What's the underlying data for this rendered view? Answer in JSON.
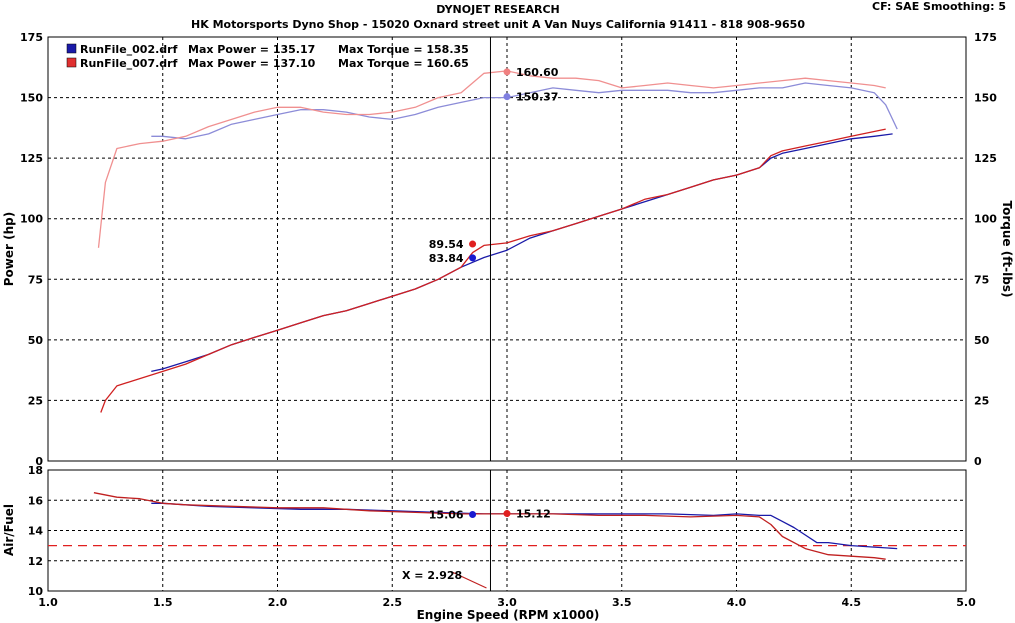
{
  "header": {
    "line1": "DYNOJET RESEARCH",
    "line2": "HK Motorsports Dyno Shop - 15020 Oxnard street unit A Van Nuys California 91411 - 818 908-9650",
    "settings": "CF: SAE  Smoothing: 5"
  },
  "chart_data": [
    {
      "type": "line",
      "panel": "power-torque",
      "ylabel_left": "Power (hp)",
      "ylabel_right": "Torque (ft-lbs)",
      "xlim": [
        1.0,
        5.0
      ],
      "ylim": [
        0,
        175
      ],
      "x_ticks": [
        1.0,
        1.5,
        2.0,
        2.5,
        3.0,
        3.5,
        4.0,
        4.5,
        5.0
      ],
      "y_ticks": [
        0,
        25,
        50,
        75,
        100,
        125,
        150,
        175
      ],
      "y_tick_labels": [
        "0",
        "25",
        "50",
        "75",
        "100",
        "125",
        "150",
        "175"
      ],
      "y_tick_labels_right": [
        "0",
        "25",
        "50",
        "75",
        "100",
        "125",
        "150",
        "175"
      ],
      "grid": true,
      "legend": {
        "position": "top-left",
        "entries": [
          {
            "file": "RunFile_002.drf",
            "power_label": "Max Power = 135.17",
            "torque_label": "Max Torque = 158.35",
            "color": "#1a1aa8"
          },
          {
            "file": "RunFile_007.drf",
            "power_label": "Max Power = 137.10",
            "torque_label": "Max Torque = 160.65",
            "color": "#e03030"
          }
        ]
      },
      "cursor_x": 2.928,
      "annotations": [
        {
          "text": "160.60",
          "x": 3.0,
          "y": 160.6,
          "color": "#f08080",
          "side": "right"
        },
        {
          "text": "150.37",
          "x": 3.0,
          "y": 150.37,
          "color": "#8080e0",
          "side": "right"
        },
        {
          "text": "89.54",
          "x": 2.85,
          "y": 89.54,
          "color": "#e02020",
          "side": "left"
        },
        {
          "text": "83.84",
          "x": 2.85,
          "y": 83.84,
          "color": "#1a1ad0",
          "side": "left"
        }
      ],
      "series": [
        {
          "name": "RunFile_002.drf Power",
          "color": "#1a1aa8",
          "x": [
            1.45,
            1.5,
            1.6,
            1.7,
            1.8,
            1.9,
            2.0,
            2.1,
            2.2,
            2.3,
            2.4,
            2.5,
            2.6,
            2.7,
            2.8,
            2.9,
            3.0,
            3.1,
            3.2,
            3.3,
            3.4,
            3.5,
            3.6,
            3.7,
            3.8,
            3.9,
            4.0,
            4.1,
            4.15,
            4.2,
            4.3,
            4.4,
            4.5,
            4.6,
            4.68
          ],
          "y": [
            37,
            38,
            41,
            44,
            48,
            51,
            54,
            57,
            60,
            62,
            65,
            68,
            71,
            75,
            80,
            84,
            87,
            92,
            95,
            98,
            101,
            104,
            107,
            110,
            113,
            116,
            118,
            121,
            125,
            127,
            129,
            131,
            133,
            134,
            135
          ]
        },
        {
          "name": "RunFile_007.drf Power",
          "color": "#d02020",
          "x": [
            1.23,
            1.25,
            1.3,
            1.4,
            1.5,
            1.6,
            1.7,
            1.8,
            1.9,
            2.0,
            2.1,
            2.2,
            2.3,
            2.4,
            2.5,
            2.6,
            2.7,
            2.8,
            2.85,
            2.9,
            3.0,
            3.1,
            3.2,
            3.3,
            3.4,
            3.5,
            3.6,
            3.7,
            3.8,
            3.9,
            4.0,
            4.1,
            4.15,
            4.2,
            4.3,
            4.4,
            4.5,
            4.6,
            4.65
          ],
          "y": [
            20,
            25,
            31,
            34,
            37,
            40,
            44,
            48,
            51,
            54,
            57,
            60,
            62,
            65,
            68,
            71,
            75,
            80,
            86,
            89,
            90,
            93,
            95,
            98,
            101,
            104,
            108,
            110,
            113,
            116,
            118,
            121,
            126,
            128,
            130,
            132,
            134,
            136,
            137
          ]
        },
        {
          "name": "RunFile_002.drf Torque",
          "color": "#8c8cd8",
          "x": [
            1.45,
            1.5,
            1.6,
            1.7,
            1.8,
            1.9,
            2.0,
            2.1,
            2.2,
            2.3,
            2.4,
            2.5,
            2.6,
            2.7,
            2.8,
            2.9,
            3.0,
            3.1,
            3.2,
            3.3,
            3.4,
            3.5,
            3.6,
            3.7,
            3.8,
            3.9,
            4.0,
            4.1,
            4.2,
            4.3,
            4.4,
            4.5,
            4.6,
            4.65,
            4.7
          ],
          "y": [
            134,
            134,
            133,
            135,
            139,
            141,
            143,
            145,
            145,
            144,
            142,
            141,
            143,
            146,
            148,
            150,
            150,
            152,
            154,
            153,
            152,
            153,
            153,
            153,
            152,
            152,
            153,
            154,
            154,
            156,
            155,
            154,
            152,
            147,
            137
          ]
        },
        {
          "name": "RunFile_007.drf Torque",
          "color": "#f09090",
          "x": [
            1.22,
            1.25,
            1.3,
            1.4,
            1.5,
            1.6,
            1.7,
            1.8,
            1.9,
            2.0,
            2.1,
            2.2,
            2.3,
            2.4,
            2.5,
            2.6,
            2.7,
            2.8,
            2.9,
            3.0,
            3.1,
            3.2,
            3.3,
            3.4,
            3.5,
            3.6,
            3.7,
            3.8,
            3.9,
            4.0,
            4.1,
            4.2,
            4.3,
            4.4,
            4.5,
            4.6,
            4.65
          ],
          "y": [
            88,
            115,
            129,
            131,
            132,
            134,
            138,
            141,
            144,
            146,
            146,
            144,
            143,
            143,
            144,
            146,
            150,
            152,
            160,
            161,
            159,
            158,
            158,
            157,
            154,
            155,
            156,
            155,
            154,
            155,
            156,
            157,
            158,
            157,
            156,
            155,
            154
          ]
        }
      ]
    },
    {
      "type": "line",
      "panel": "air-fuel",
      "ylabel": "Air/Fuel",
      "xlabel": "Engine Speed (RPM x1000)",
      "xlim": [
        1.0,
        5.0
      ],
      "ylim": [
        10,
        18
      ],
      "x_ticks": [
        1.0,
        1.5,
        2.0,
        2.5,
        3.0,
        3.5,
        4.0,
        4.5,
        5.0
      ],
      "x_tick_labels": [
        "1.0",
        "1.5",
        "2.0",
        "2.5",
        "3.0",
        "3.5",
        "4.0",
        "4.5",
        "5.0"
      ],
      "y_ticks": [
        10,
        12,
        14,
        16,
        18
      ],
      "y_tick_labels": [
        "10",
        "12",
        "14",
        "16",
        "18"
      ],
      "grid": true,
      "reference_line": {
        "y": 13.0,
        "color": "#e02020",
        "style": "dashed"
      },
      "cursor_label": "X = 2.928",
      "annotations": [
        {
          "text": "15.06",
          "x": 2.85,
          "y": 15.06,
          "color": "#1a1ad0",
          "side": "left"
        },
        {
          "text": "15.12",
          "x": 3.0,
          "y": 15.12,
          "color": "#e02020",
          "side": "right"
        }
      ],
      "series": [
        {
          "name": "RunFile_002.drf AFR",
          "color": "#1a1aa8",
          "x": [
            1.45,
            1.5,
            1.7,
            1.9,
            2.1,
            2.3,
            2.5,
            2.7,
            2.9,
            3.1,
            3.3,
            3.5,
            3.7,
            3.9,
            4.0,
            4.1,
            4.15,
            4.2,
            4.25,
            4.3,
            4.35,
            4.4,
            4.5,
            4.6,
            4.7
          ],
          "y": [
            15.8,
            15.8,
            15.6,
            15.5,
            15.4,
            15.4,
            15.3,
            15.2,
            15.1,
            15.1,
            15.1,
            15.1,
            15.1,
            15.0,
            15.1,
            15.0,
            15.0,
            14.6,
            14.2,
            13.7,
            13.2,
            13.2,
            13.0,
            12.9,
            12.8
          ]
        },
        {
          "name": "RunFile_007.drf AFR",
          "color": "#c02020",
          "x": [
            1.2,
            1.3,
            1.4,
            1.5,
            1.6,
            1.8,
            2.0,
            2.2,
            2.4,
            2.6,
            2.8,
            2.9,
            3.0,
            3.2,
            3.4,
            3.6,
            3.8,
            4.0,
            4.1,
            4.15,
            4.2,
            4.3,
            4.4,
            4.5,
            4.6,
            4.65
          ],
          "y": [
            16.5,
            16.2,
            16.1,
            15.8,
            15.7,
            15.6,
            15.5,
            15.5,
            15.3,
            15.2,
            15.1,
            15.1,
            15.1,
            15.1,
            15.0,
            15.0,
            14.9,
            15.0,
            14.9,
            14.4,
            13.6,
            12.8,
            12.4,
            12.3,
            12.2,
            12.1
          ]
        }
      ]
    }
  ]
}
